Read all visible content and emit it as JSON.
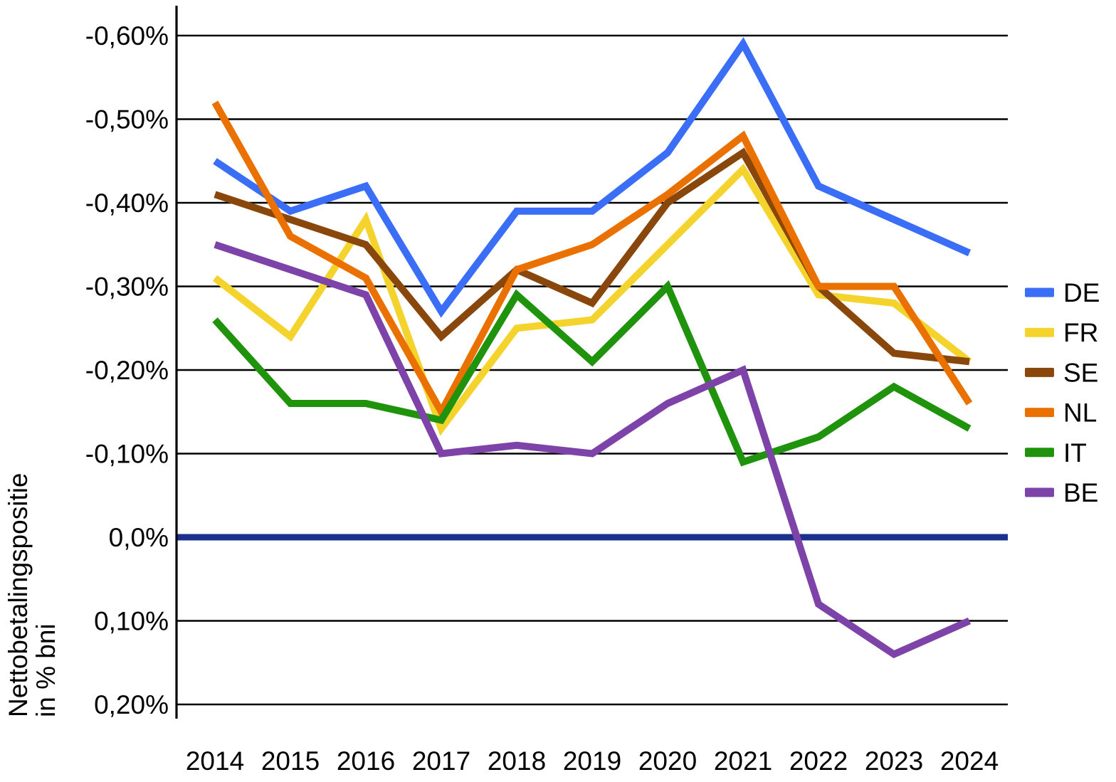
{
  "chart_data": {
    "type": "line",
    "title": "",
    "xlabel": "",
    "ylabel_lines": [
      "Nettobetalingspositie",
      "in % bni"
    ],
    "x": [
      2014,
      2015,
      2016,
      2017,
      2018,
      2019,
      2020,
      2021,
      2022,
      2023,
      2024
    ],
    "x_tick_labels": [
      "2014",
      "2015",
      "2016",
      "2017",
      "2018",
      "2019",
      "2020",
      "2021",
      "2022",
      "2023",
      "2024"
    ],
    "y_axis": {
      "unit": "% bni",
      "inverted": true,
      "ticks": [
        -0.6,
        -0.5,
        -0.4,
        -0.3,
        -0.2,
        -0.1,
        0.0,
        0.1,
        0.2
      ],
      "tick_labels": [
        "-0,60%",
        "-0,50%",
        "-0,40%",
        "-0,30%",
        "-0,20%",
        "-0,10%",
        "0,0%",
        "0,10%",
        "0,20%"
      ]
    },
    "grid": true,
    "legend_position": "right",
    "zero_line": {
      "value": 0.0,
      "color": "#1B2F8C"
    },
    "series": [
      {
        "name": "DE",
        "color": "#3B6EF6",
        "values": [
          -0.45,
          -0.39,
          -0.42,
          -0.27,
          -0.39,
          -0.39,
          -0.46,
          -0.59,
          -0.42,
          -0.38,
          -0.34
        ]
      },
      {
        "name": "FR",
        "color": "#F4D32C",
        "values": [
          -0.31,
          -0.24,
          -0.38,
          -0.13,
          -0.25,
          -0.26,
          -0.35,
          -0.44,
          -0.29,
          -0.28,
          -0.21
        ]
      },
      {
        "name": "SE",
        "color": "#8A470C",
        "values": [
          -0.41,
          -0.38,
          -0.35,
          -0.24,
          -0.32,
          -0.28,
          -0.4,
          -0.46,
          -0.3,
          -0.22,
          -0.21
        ]
      },
      {
        "name": "NL",
        "color": "#EA7100",
        "values": [
          -0.52,
          -0.36,
          -0.31,
          -0.15,
          -0.32,
          -0.35,
          -0.41,
          -0.48,
          -0.3,
          -0.3,
          -0.16
        ]
      },
      {
        "name": "IT",
        "color": "#1F930C",
        "values": [
          -0.26,
          -0.16,
          -0.16,
          -0.14,
          -0.29,
          -0.21,
          -0.3,
          -0.09,
          -0.12,
          -0.18,
          -0.13
        ]
      },
      {
        "name": "BE",
        "color": "#7D43A9",
        "values": [
          -0.35,
          -0.32,
          -0.29,
          -0.1,
          -0.11,
          -0.1,
          -0.16,
          -0.2,
          0.08,
          0.14,
          0.1
        ]
      }
    ],
    "style": {
      "grid_color": "#000000",
      "axis_color": "#000000",
      "text_color": "#000000"
    }
  }
}
